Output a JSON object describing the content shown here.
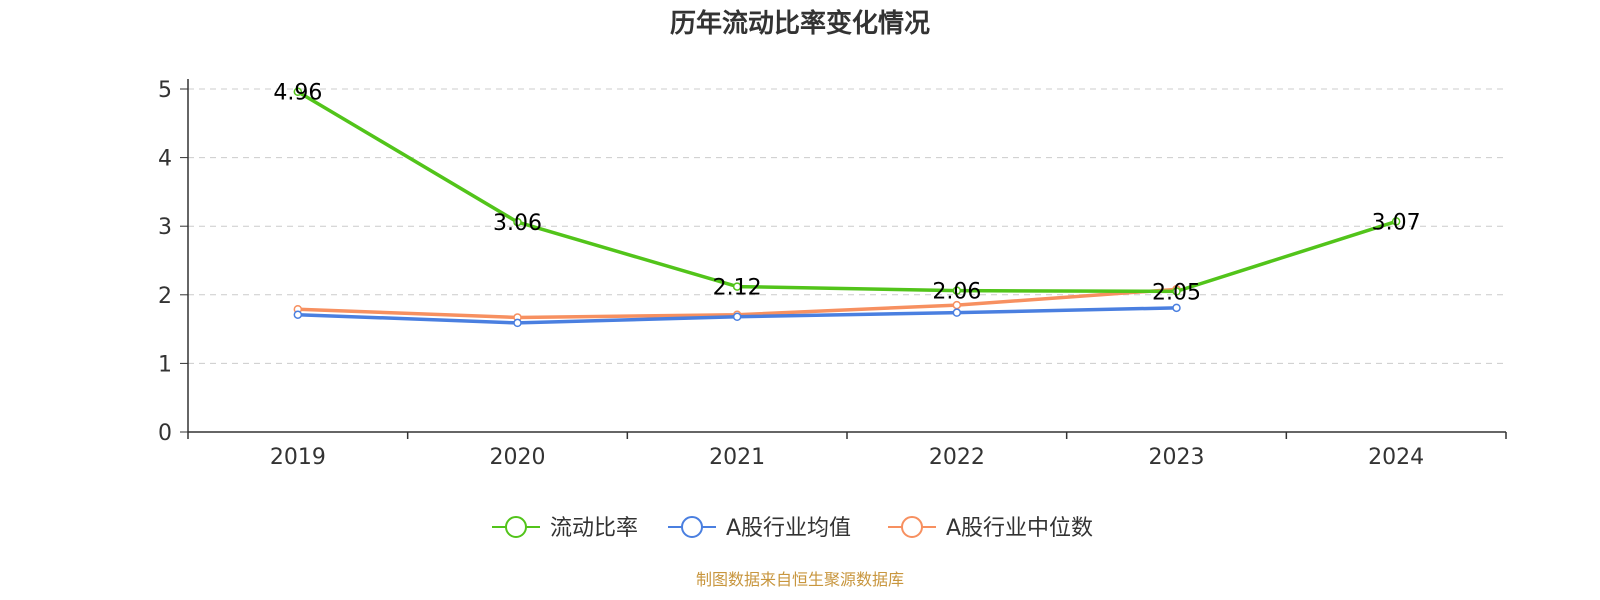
{
  "chart_data": {
    "type": "line",
    "title": "历年流动比率变化情况",
    "categories": [
      "2019",
      "2020",
      "2021",
      "2022",
      "2023",
      "2024"
    ],
    "ylim": [
      0,
      5
    ],
    "yticks": [
      "0",
      "1",
      "2",
      "3",
      "4",
      "5"
    ],
    "grid": true,
    "legend_position": "bottom",
    "series": [
      {
        "name": "流动比率",
        "color": "#52c41a",
        "values": [
          4.96,
          3.06,
          2.12,
          2.06,
          2.05,
          3.07
        ],
        "labels": [
          "4.96",
          "3.06",
          "2.12",
          "2.06",
          "2.05",
          "3.07"
        ],
        "show_labels": true
      },
      {
        "name": "A股行业均值",
        "color": "#4a7fe0",
        "values": [
          1.71,
          1.59,
          1.68,
          1.74,
          1.81,
          null
        ],
        "show_labels": false
      },
      {
        "name": "A股行业中位数",
        "color": "#f79060",
        "values": [
          1.79,
          1.67,
          1.71,
          1.85,
          2.08,
          null
        ],
        "show_labels": false
      }
    ],
    "source": "制图数据来自恒生聚源数据库"
  }
}
